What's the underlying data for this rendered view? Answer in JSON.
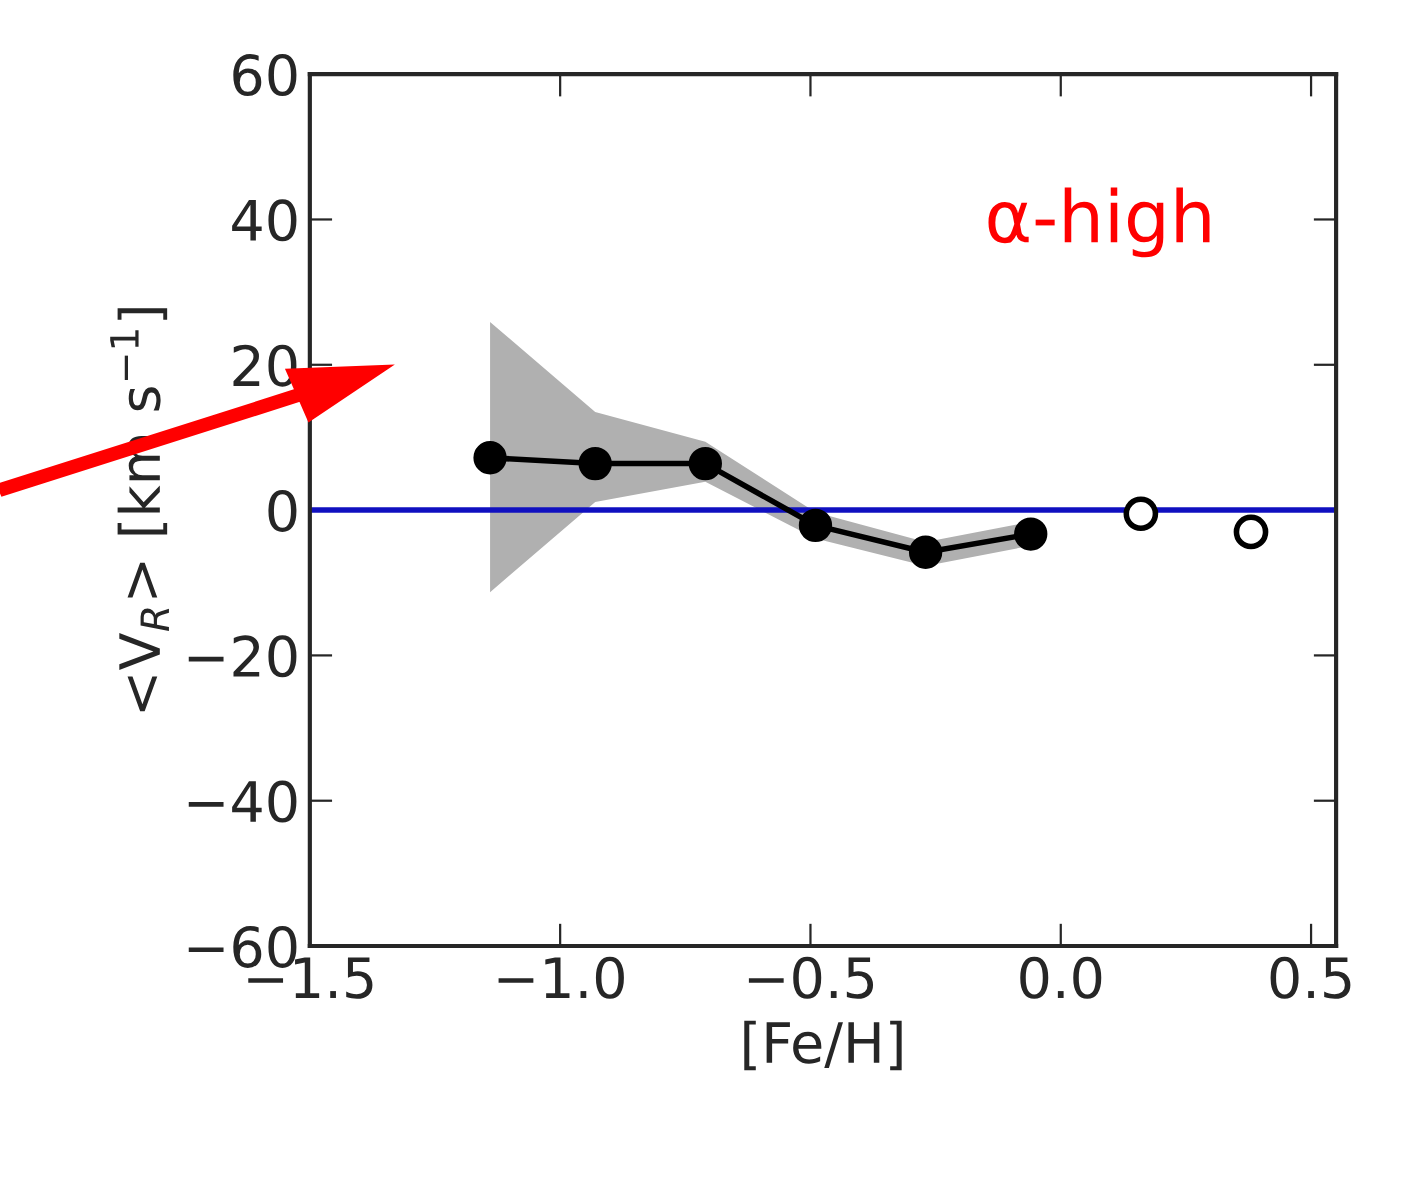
{
  "chart_data": {
    "type": "line",
    "xlabel": "[Fe/H]",
    "ylabel": "<V$_{R}$> [km s$^{−1}$]",
    "xlim": [
      -1.5,
      0.55
    ],
    "xticks": [
      {
        "value": -1.5,
        "label": "−1.5"
      },
      {
        "value": -1.0,
        "label": "−1.0"
      },
      {
        "value": -0.5,
        "label": "−0.5"
      },
      {
        "value": 0.0,
        "label": "0.0"
      },
      {
        "value": 0.5,
        "label": "0.5"
      }
    ],
    "ylim": [
      -60,
      60
    ],
    "yticks": [
      {
        "value": -60,
        "label": "−60"
      },
      {
        "value": -40,
        "label": "−40"
      },
      {
        "value": -20,
        "label": "−20"
      },
      0,
      20,
      40,
      60
    ],
    "marker": "circle",
    "grid": false,
    "series": [
      {
        "color": "#000000",
        "x": [
          -1.14,
          -0.93,
          -0.71,
          -0.49,
          -0.27,
          -0.06
        ],
        "values": [
          7.2,
          6.4,
          6.4,
          -2.1,
          -5.8,
          -3.3
        ],
        "lower": [
          -11.3,
          1.1,
          3.9,
          -3.9,
          -7.7,
          -4.9
        ],
        "upper": [
          25.9,
          13.5,
          9.4,
          -0.3,
          -4.4,
          -1.6
        ]
      },
      {
        "type": "scatter",
        "color": "#000000",
        "x": [
          0.16,
          0.38
        ],
        "values": [
          -0.5,
          -3.0
        ]
      }
    ],
    "ref_lines": [
      {
        "axis": "y",
        "value": 0,
        "color": "#1010c0"
      }
    ],
    "annotations": [
      "α-high"
    ]
  }
}
